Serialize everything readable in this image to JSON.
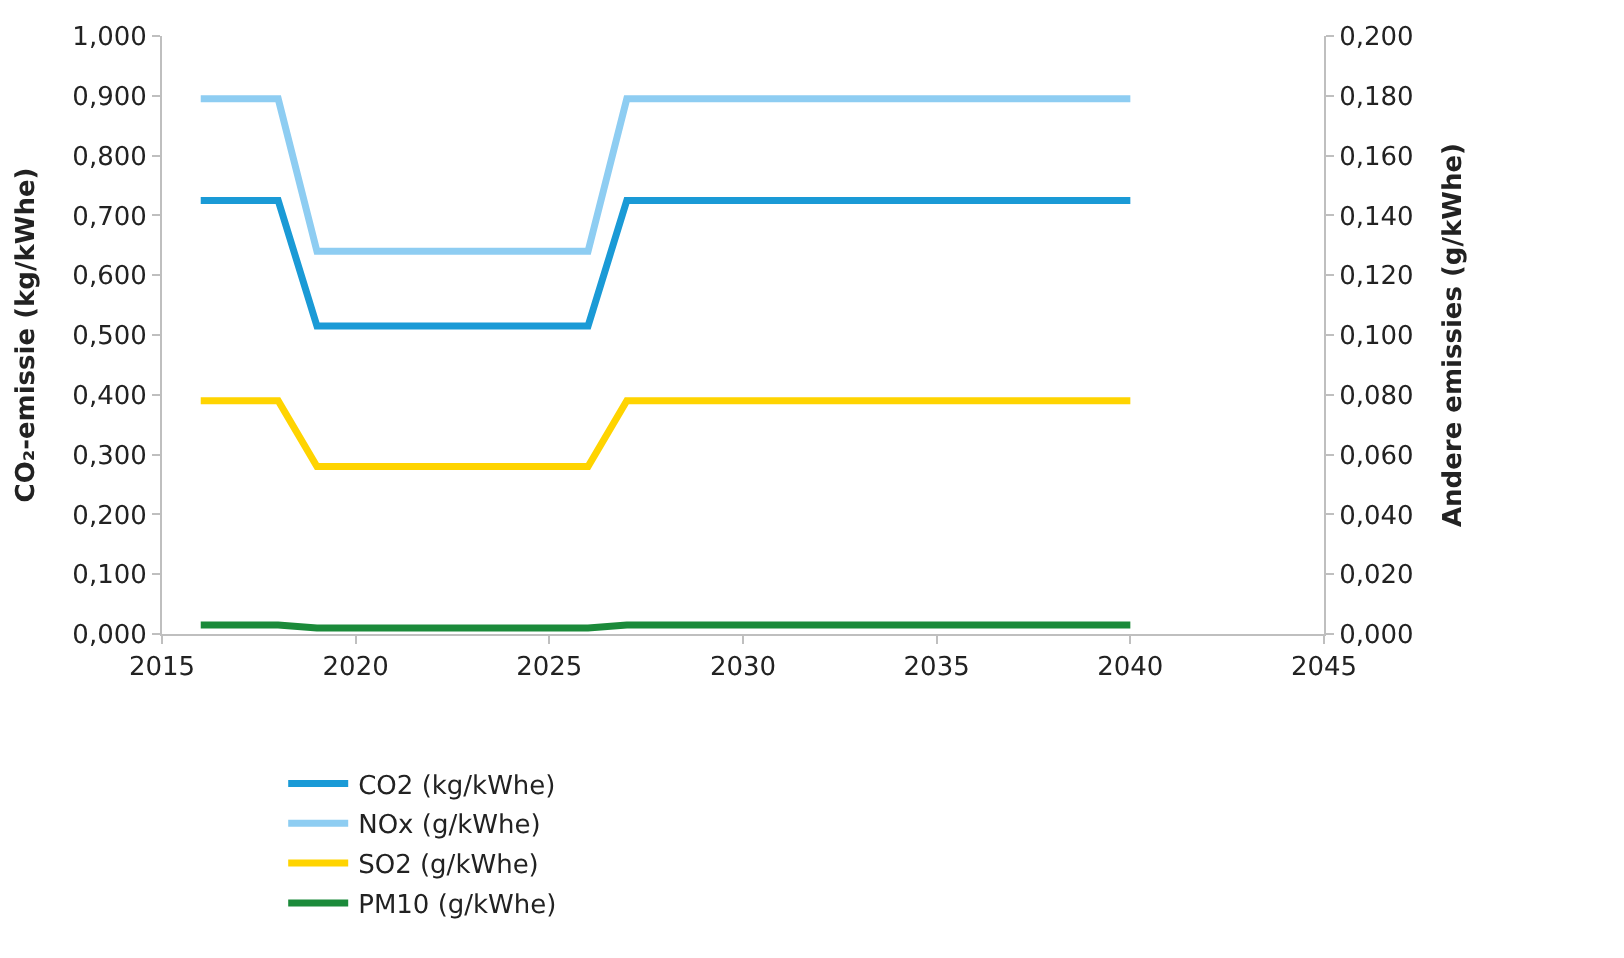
{
  "chart_data": {
    "type": "line",
    "ylabel": "CO₂-emissie (kg/kWhe)",
    "y2label": "Andere emissies (g/kWhe)",
    "x": [
      2016,
      2018,
      2019,
      2026,
      2027,
      2040
    ],
    "series": [
      {
        "name": "CO2 (kg/kWhe)",
        "color": "#1a9ad6",
        "values": [
          0.725,
          0.725,
          0.515,
          0.515,
          0.725,
          0.725
        ]
      },
      {
        "name": "NOx (g/kWhe)",
        "color": "#8ecdf2",
        "axis": "y2",
        "values": [
          0.179,
          0.179,
          0.128,
          0.128,
          0.179,
          0.179
        ]
      },
      {
        "name": "SO2 (g/kWhe)",
        "color": "#ffd400",
        "axis": "y2",
        "values": [
          0.078,
          0.078,
          0.056,
          0.056,
          0.078,
          0.078
        ]
      },
      {
        "name": "PM10 (g/kWhe)",
        "color": "#1b8a3a",
        "axis": "y2",
        "values": [
          0.003,
          0.003,
          0.002,
          0.002,
          0.003,
          0.003
        ]
      }
    ],
    "xlim": [
      2015,
      2045
    ],
    "xticks": [
      2015,
      2020,
      2025,
      2030,
      2035,
      2040,
      2045
    ],
    "ylim": [
      0,
      1
    ],
    "yticks": [
      {
        "value": 0,
        "label": "0,000"
      },
      {
        "value": 0.1,
        "label": "0,100"
      },
      {
        "value": 0.2,
        "label": "0,200"
      },
      {
        "value": 0.3,
        "label": "0,300"
      },
      {
        "value": 0.4,
        "label": "0,400"
      },
      {
        "value": 0.5,
        "label": "0,500"
      },
      {
        "value": 0.6,
        "label": "0,600"
      },
      {
        "value": 0.7,
        "label": "0,700"
      },
      {
        "value": 0.8,
        "label": "0,800"
      },
      {
        "value": 0.9,
        "label": "0,900"
      },
      {
        "value": 1,
        "label": "1,000"
      }
    ],
    "y2lim": [
      0,
      0.2
    ],
    "y2ticks": [
      {
        "value": 0,
        "label": "0,000"
      },
      {
        "value": 0.02,
        "label": "0,020"
      },
      {
        "value": 0.04,
        "label": "0,040"
      },
      {
        "value": 0.06,
        "label": "0,060"
      },
      {
        "value": 0.08,
        "label": "0,080"
      },
      {
        "value": 0.1,
        "label": "0,100"
      },
      {
        "value": 0.12,
        "label": "0,120"
      },
      {
        "value": 0.14,
        "label": "0,140"
      },
      {
        "value": 0.16,
        "label": "0,160"
      },
      {
        "value": 0.18,
        "label": "0,180"
      },
      {
        "value": 0.2,
        "label": "0,200"
      }
    ],
    "grid": false,
    "legend": "bottom",
    "marker": "none",
    "line_style": "solid"
  }
}
